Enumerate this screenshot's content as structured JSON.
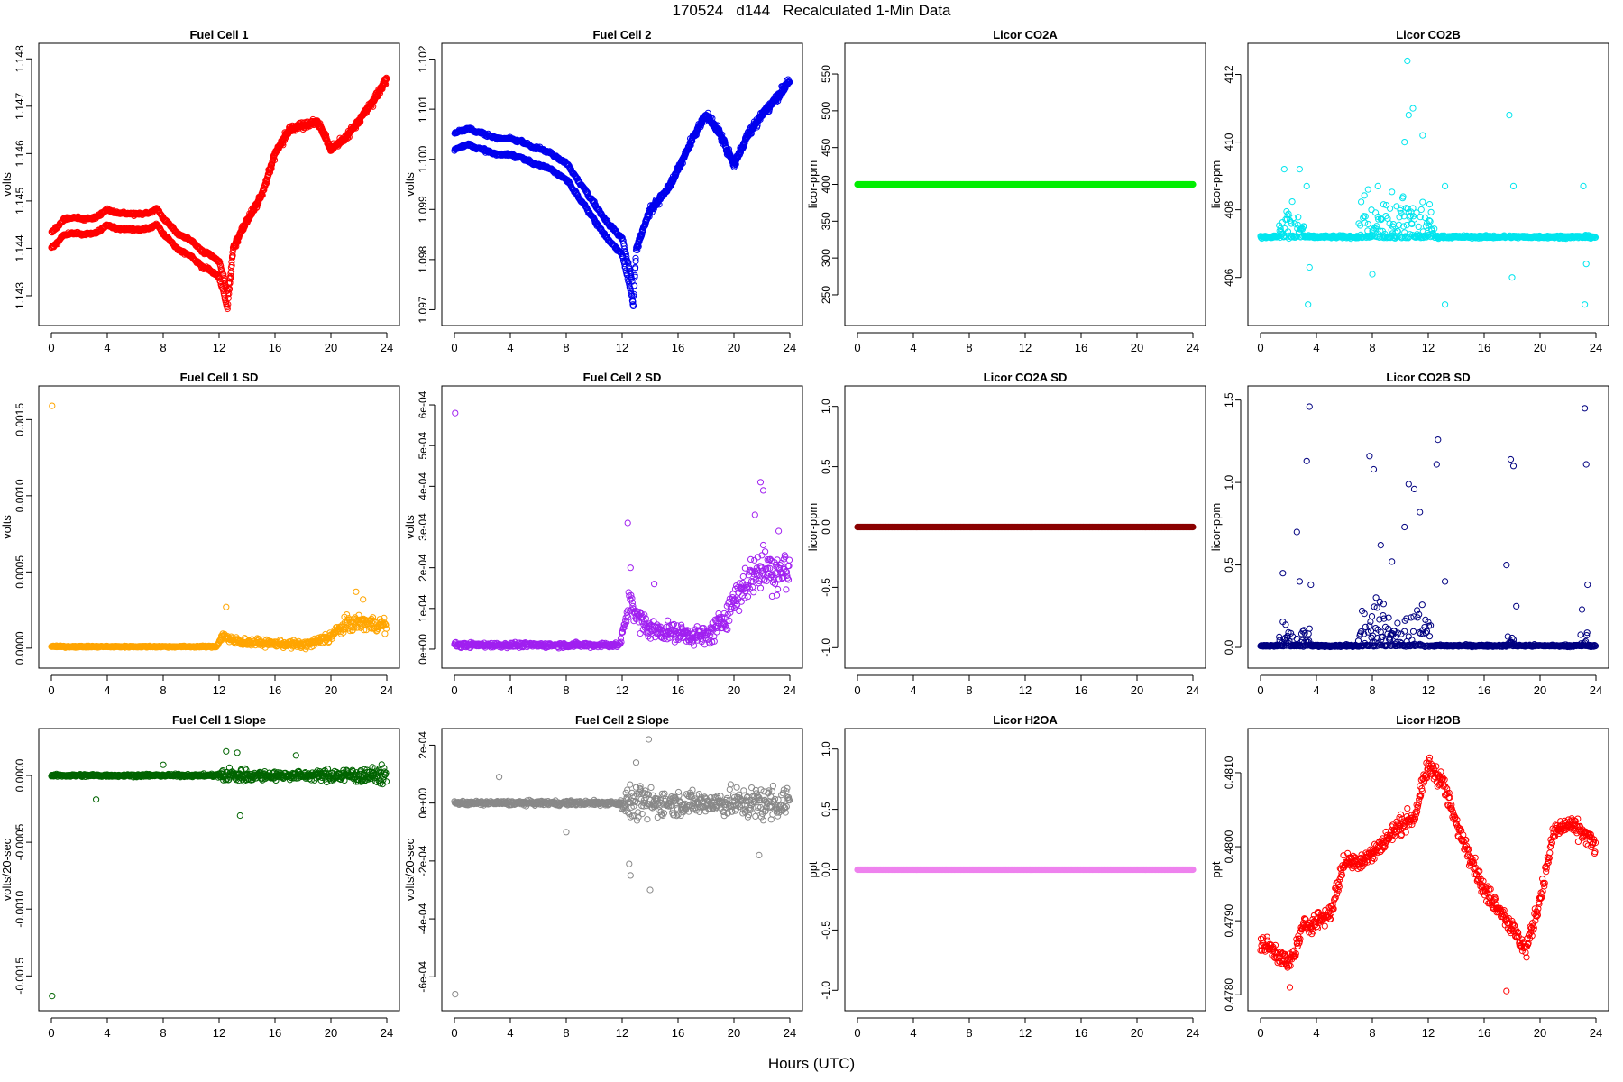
{
  "figure": {
    "title": "170524   d144   Recalculated 1-Min Data",
    "xlabel": "Hours (UTC)"
  },
  "chart_data": [
    {
      "id": "fc1",
      "type": "scatter",
      "title": "Fuel Cell 1",
      "ylabel": "volts",
      "xlim": [
        0,
        24
      ],
      "ylim": [
        1.1426,
        1.1481
      ],
      "xticks": [
        "0",
        "4",
        "8",
        "12",
        "16",
        "20",
        "24"
      ],
      "yticks": [
        1.143,
        1.144,
        1.145,
        1.146,
        1.147,
        1.148
      ],
      "ytick_labels": [
        "1.143",
        "1.144",
        "1.145",
        "1.146",
        "1.147",
        "1.148"
      ],
      "color": "#ff0000",
      "pattern": "dual",
      "series": [
        [
          0,
          1.144
        ],
        [
          1,
          1.1443
        ],
        [
          2,
          1.1443
        ],
        [
          3,
          1.1443
        ],
        [
          4,
          1.1445
        ],
        [
          5,
          1.1444
        ],
        [
          6,
          1.1444
        ],
        [
          7,
          1.1444
        ],
        [
          7.5,
          1.1445
        ],
        [
          8,
          1.1443
        ],
        [
          9,
          1.144
        ],
        [
          10,
          1.1438
        ],
        [
          11,
          1.1436
        ],
        [
          12,
          1.1434
        ],
        [
          12.3,
          1.1431
        ],
        [
          12.6,
          1.1427
        ],
        [
          13,
          1.144
        ],
        [
          14,
          1.1446
        ],
        [
          15,
          1.1451
        ],
        [
          16,
          1.146
        ],
        [
          17,
          1.1465
        ],
        [
          18,
          1.1466
        ],
        [
          19,
          1.1467
        ],
        [
          20,
          1.1461
        ],
        [
          21,
          1.1463
        ],
        [
          22,
          1.1467
        ],
        [
          23,
          1.1471
        ],
        [
          24,
          1.1476
        ]
      ],
      "offset": 0.00033,
      "jitter": 8e-05
    },
    {
      "id": "fc2",
      "type": "scatter",
      "title": "Fuel Cell 2",
      "ylabel": "volts",
      "xlim": [
        0,
        24
      ],
      "ylim": [
        1.0969,
        1.1021
      ],
      "xticks": [
        "0",
        "4",
        "8",
        "12",
        "16",
        "20",
        "24"
      ],
      "yticks": [
        1.097,
        1.098,
        1.099,
        1.1,
        1.101,
        1.102
      ],
      "ytick_labels": [
        "1.097",
        "1.098",
        "1.099",
        "1.100",
        "1.101",
        "1.102"
      ],
      "color": "#0000ee",
      "pattern": "dual",
      "series": [
        [
          0,
          1.1002
        ],
        [
          1,
          1.1003
        ],
        [
          2,
          1.1002
        ],
        [
          3,
          1.1001
        ],
        [
          4,
          1.1001
        ],
        [
          5,
          1.1
        ],
        [
          6,
          1.0999
        ],
        [
          7,
          1.0998
        ],
        [
          8,
          1.0996
        ],
        [
          9,
          1.0992
        ],
        [
          10,
          1.0988
        ],
        [
          11,
          1.0984
        ],
        [
          12,
          1.0981
        ],
        [
          12.5,
          1.0975
        ],
        [
          12.8,
          1.0971
        ],
        [
          13,
          1.0982
        ],
        [
          14,
          1.099
        ],
        [
          15,
          1.0993
        ],
        [
          16,
          1.0998
        ],
        [
          17,
          1.1004
        ],
        [
          18,
          1.1009
        ],
        [
          19,
          1.1005
        ],
        [
          20,
          1.0999
        ],
        [
          21,
          1.1005
        ],
        [
          22,
          1.1009
        ],
        [
          23,
          1.1012
        ],
        [
          24,
          1.1016
        ]
      ],
      "offset": 0.00032,
      "jitter": 8e-05
    },
    {
      "id": "co2a",
      "type": "scatter",
      "title": "Licor CO2A",
      "ylabel": "licor-ppm",
      "xlim": [
        0,
        24
      ],
      "ylim": [
        223,
        577
      ],
      "xticks": [
        "0",
        "4",
        "8",
        "12",
        "16",
        "20",
        "24"
      ],
      "yticks": [
        250,
        300,
        350,
        400,
        450,
        500,
        550
      ],
      "ytick_labels": [
        "250",
        "300",
        "350",
        "400",
        "450",
        "500",
        "550"
      ],
      "color": "#00ee00",
      "pattern": "flat",
      "value": 400,
      "filled": true
    },
    {
      "id": "co2b",
      "type": "scatter",
      "title": "Licor CO2B",
      "ylabel": "licor-ppm",
      "xlim": [
        0,
        24
      ],
      "ylim": [
        404.9,
        412.6
      ],
      "xticks": [
        "0",
        "4",
        "8",
        "12",
        "16",
        "20",
        "24"
      ],
      "yticks": [
        406,
        408,
        410,
        412
      ],
      "ytick_labels": [
        "406",
        "408",
        "410",
        "412"
      ],
      "color": "#00e5ee",
      "pattern": "baseline",
      "base": 407.2,
      "jitter": 0.04,
      "bursts": [
        [
          1.3,
          3.2,
          1.2
        ],
        [
          7,
          12.2,
          1.6
        ],
        [
          12.2,
          12.5,
          0.6
        ]
      ],
      "outliers": [
        [
          1.7,
          409.2
        ],
        [
          2.8,
          409.2
        ],
        [
          3.3,
          408.7
        ],
        [
          3.5,
          406.3
        ],
        [
          3.4,
          405.2
        ],
        [
          7.7,
          408.6
        ],
        [
          8.4,
          408.7
        ],
        [
          8.0,
          406.1
        ],
        [
          10.3,
          410.0
        ],
        [
          10.6,
          410.8
        ],
        [
          10.5,
          412.4
        ],
        [
          10.9,
          411.0
        ],
        [
          11.6,
          410.2
        ],
        [
          13.2,
          408.7
        ],
        [
          13.2,
          405.2
        ],
        [
          17.8,
          410.8
        ],
        [
          18.1,
          408.7
        ],
        [
          18.0,
          406.0
        ],
        [
          23.1,
          408.7
        ],
        [
          23.3,
          406.4
        ],
        [
          23.2,
          405.2
        ]
      ]
    },
    {
      "id": "fc1sd",
      "type": "scatter",
      "title": "Fuel Cell 1 SD",
      "ylabel": "volts",
      "xlim": [
        0,
        24
      ],
      "ylim": [
        -6e-05,
        0.00165
      ],
      "xticks": [
        "0",
        "4",
        "8",
        "12",
        "16",
        "20",
        "24"
      ],
      "yticks": [
        0,
        0.0005,
        0.001,
        0.0015
      ],
      "ytick_labels": [
        "0.0000",
        "0.0005",
        "0.0010",
        "0.0015"
      ],
      "color": "#ffa500",
      "pattern": "noise",
      "series": [
        [
          0,
          1e-05
        ],
        [
          11.8,
          1e-05
        ],
        [
          12.3,
          9e-05
        ],
        [
          12.8,
          5e-05
        ],
        [
          14,
          4e-05
        ],
        [
          16,
          3e-05
        ],
        [
          18,
          2e-05
        ],
        [
          19,
          4e-05
        ],
        [
          20,
          8e-05
        ],
        [
          21,
          0.00015
        ],
        [
          22,
          0.00017
        ],
        [
          24,
          0.00015
        ]
      ],
      "spread": [
        [
          0,
          5e-06
        ],
        [
          11.8,
          5e-06
        ],
        [
          12.5,
          3e-05
        ],
        [
          16,
          2e-05
        ],
        [
          19,
          3e-05
        ],
        [
          21,
          5e-05
        ],
        [
          24,
          5e-05
        ]
      ],
      "outliers": [
        [
          0.05,
          0.00159
        ],
        [
          12.5,
          0.00027
        ],
        [
          21.8,
          0.00037
        ],
        [
          22.3,
          0.00032
        ]
      ]
    },
    {
      "id": "fc2sd",
      "type": "scatter",
      "title": "Fuel Cell 2 SD",
      "ylabel": "volts",
      "xlim": [
        0,
        24
      ],
      "ylim": [
        -2e-05,
        0.00062
      ],
      "xticks": [
        "0",
        "4",
        "8",
        "12",
        "16",
        "20",
        "24"
      ],
      "yticks": [
        0,
        0.0001,
        0.0002,
        0.0003,
        0.0004,
        0.0005,
        0.0006
      ],
      "ytick_labels": [
        "0e+00",
        "1e-04",
        "2e-04",
        "3e-04",
        "4e-04",
        "5e-04",
        "6e-04"
      ],
      "color": "#a020f0",
      "pattern": "noise",
      "series": [
        [
          0,
          1e-05
        ],
        [
          11.8,
          1e-05
        ],
        [
          12.2,
          6e-05
        ],
        [
          12.6,
          0.00013
        ],
        [
          13,
          8e-05
        ],
        [
          14,
          5e-05
        ],
        [
          16,
          4e-05
        ],
        [
          18,
          3e-05
        ],
        [
          19,
          6e-05
        ],
        [
          20,
          0.00012
        ],
        [
          21,
          0.00017
        ],
        [
          22,
          0.0002
        ],
        [
          24,
          0.00019
        ]
      ],
      "spread": [
        [
          0,
          6e-06
        ],
        [
          11.8,
          6e-06
        ],
        [
          12.5,
          3e-05
        ],
        [
          16,
          2e-05
        ],
        [
          19,
          3e-05
        ],
        [
          21,
          5e-05
        ],
        [
          24,
          6e-05
        ]
      ],
      "outliers": [
        [
          0.05,
          0.00058
        ],
        [
          12.4,
          0.00031
        ],
        [
          12.6,
          0.0002
        ],
        [
          14.3,
          0.00016
        ],
        [
          21.9,
          0.00041
        ],
        [
          22.1,
          0.00039
        ],
        [
          21.5,
          0.00033
        ],
        [
          23.2,
          0.00029
        ]
      ]
    },
    {
      "id": "co2asd",
      "type": "scatter",
      "title": "Licor CO2A SD",
      "ylabel": "licor-ppm",
      "xlim": [
        0,
        24
      ],
      "ylim": [
        -1.08,
        1.08
      ],
      "xticks": [
        "0",
        "4",
        "8",
        "12",
        "16",
        "20",
        "24"
      ],
      "yticks": [
        -1,
        -0.5,
        0,
        0.5,
        1
      ],
      "ytick_labels": [
        "-1.0",
        "-0.5",
        "0.0",
        "0.5",
        "1.0"
      ],
      "color": "#8b0000",
      "pattern": "flat",
      "value": 0,
      "filled": true
    },
    {
      "id": "co2bsd",
      "type": "scatter",
      "title": "Licor CO2B SD",
      "ylabel": "licor-ppm",
      "xlim": [
        0,
        24
      ],
      "ylim": [
        -0.06,
        1.52
      ],
      "xticks": [
        "0",
        "4",
        "8",
        "12",
        "16",
        "20",
        "24"
      ],
      "yticks": [
        0,
        0.5,
        1,
        1.5
      ],
      "ytick_labels": [
        "0.0",
        "0.5",
        "1.0",
        "1.5"
      ],
      "color": "#000080",
      "pattern": "baseline",
      "base": 0.01,
      "jitter": 0.006,
      "bursts": [
        [
          1.3,
          3.5,
          0.15
        ],
        [
          7,
          12.2,
          0.35
        ],
        [
          17.7,
          18.3,
          0.1
        ],
        [
          22.9,
          23.4,
          0.1
        ]
      ],
      "outliers": [
        [
          1.6,
          0.45
        ],
        [
          2.6,
          0.7
        ],
        [
          2.8,
          0.4
        ],
        [
          3.3,
          1.13
        ],
        [
          3.5,
          1.46
        ],
        [
          3.6,
          0.38
        ],
        [
          7.8,
          1.16
        ],
        [
          8.1,
          1.08
        ],
        [
          8.6,
          0.62
        ],
        [
          9.4,
          0.52
        ],
        [
          10.3,
          0.73
        ],
        [
          10.6,
          0.99
        ],
        [
          11.0,
          0.96
        ],
        [
          11.4,
          0.82
        ],
        [
          12.6,
          1.11
        ],
        [
          12.7,
          1.26
        ],
        [
          13.2,
          0.4
        ],
        [
          17.6,
          0.5
        ],
        [
          17.9,
          1.14
        ],
        [
          18.1,
          1.1
        ],
        [
          18.3,
          0.25
        ],
        [
          23.0,
          0.23
        ],
        [
          23.2,
          1.45
        ],
        [
          23.3,
          1.11
        ],
        [
          23.4,
          0.38
        ]
      ]
    },
    {
      "id": "fc1sl",
      "type": "scatter",
      "title": "Fuel Cell 1 Slope",
      "ylabel": "volts/20-sec",
      "xlim": [
        0,
        24
      ],
      "ylim": [
        -0.00168,
        0.00027
      ],
      "xticks": [
        "0",
        "4",
        "8",
        "12",
        "16",
        "20",
        "24"
      ],
      "yticks": [
        -0.0015,
        -0.001,
        -0.0005,
        0
      ],
      "ytick_labels": [
        "-0.0015",
        "-0.0010",
        "-0.0005",
        "0.0000"
      ],
      "color": "#006400",
      "pattern": "noise",
      "series": [
        [
          0,
          0
        ],
        [
          24,
          0
        ]
      ],
      "spread": [
        [
          0,
          1e-05
        ],
        [
          11.8,
          1e-05
        ],
        [
          12.5,
          6e-05
        ],
        [
          16,
          3e-05
        ],
        [
          19,
          3e-05
        ],
        [
          20,
          5e-05
        ],
        [
          24,
          6e-05
        ]
      ],
      "outliers": [
        [
          0.05,
          -0.00165
        ],
        [
          3.2,
          -0.00018
        ],
        [
          8.0,
          8e-05
        ],
        [
          12.5,
          0.00018
        ],
        [
          13.5,
          -0.0003
        ],
        [
          13.3,
          0.00017
        ],
        [
          17.5,
          0.00015
        ]
      ]
    },
    {
      "id": "fc2sl",
      "type": "scatter",
      "title": "Fuel Cell 2 Slope",
      "ylabel": "volts/20-sec",
      "xlim": [
        0,
        24
      ],
      "ylim": [
        -0.00068,
        0.00022
      ],
      "xticks": [
        "0",
        "4",
        "8",
        "12",
        "16",
        "20",
        "24"
      ],
      "yticks": [
        -0.0006,
        -0.0004,
        -0.0002,
        0,
        0.0002
      ],
      "ytick_labels": [
        "-6e-04",
        "-4e-04",
        "-2e-04",
        "0e+00",
        "2e-04"
      ],
      "color": "#888888",
      "pattern": "noise",
      "series": [
        [
          0,
          0
        ],
        [
          24,
          0
        ]
      ],
      "spread": [
        [
          0,
          7e-06
        ],
        [
          11.8,
          8e-06
        ],
        [
          12.5,
          6e-05
        ],
        [
          16,
          4e-05
        ],
        [
          19,
          4e-05
        ],
        [
          20,
          5e-05
        ],
        [
          24,
          6e-05
        ]
      ],
      "outliers": [
        [
          0.05,
          -0.00066
        ],
        [
          3.2,
          9e-05
        ],
        [
          8.0,
          -0.0001
        ],
        [
          12.5,
          -0.00021
        ],
        [
          12.6,
          -0.00025
        ],
        [
          14.0,
          -0.0003
        ],
        [
          13.9,
          0.00022
        ],
        [
          13.0,
          0.00014
        ],
        [
          21.8,
          -0.00018
        ]
      ]
    },
    {
      "id": "h2oa",
      "type": "scatter",
      "title": "Licor H2OA",
      "ylabel": "ppt",
      "xlim": [
        0,
        24
      ],
      "ylim": [
        -1.08,
        1.08
      ],
      "xticks": [
        "0",
        "4",
        "8",
        "12",
        "16",
        "20",
        "24"
      ],
      "yticks": [
        -1,
        -0.5,
        0,
        0.5,
        1
      ],
      "ytick_labels": [
        "-1.0",
        "-0.5",
        "0.0",
        "0.5",
        "1.0"
      ],
      "color": "#ee82ee",
      "pattern": "flat",
      "value": 0,
      "filled": true
    },
    {
      "id": "h2ob",
      "type": "scatter",
      "title": "Licor H2OB",
      "ylabel": "ppt",
      "xlim": [
        0,
        24
      ],
      "ylim": [
        0.47793,
        0.48145
      ],
      "xticks": [
        "0",
        "4",
        "8",
        "12",
        "16",
        "20",
        "24"
      ],
      "yticks": [
        0.478,
        0.479,
        0.48,
        0.481
      ],
      "ytick_labels": [
        "0.4780",
        "0.4790",
        "0.4800",
        "0.4810"
      ],
      "color": "#ff0000",
      "pattern": "noise",
      "series": [
        [
          0,
          0.4787
        ],
        [
          1,
          0.4786
        ],
        [
          2,
          0.4784
        ],
        [
          2.5,
          0.4786
        ],
        [
          3,
          0.4789
        ],
        [
          4,
          0.479
        ],
        [
          5,
          0.4791
        ],
        [
          6,
          0.4798
        ],
        [
          7,
          0.4798
        ],
        [
          8,
          0.4799
        ],
        [
          9,
          0.4801
        ],
        [
          10,
          0.4803
        ],
        [
          11,
          0.4804
        ],
        [
          12,
          0.4811
        ],
        [
          13,
          0.4809
        ],
        [
          14,
          0.4803
        ],
        [
          15,
          0.4799
        ],
        [
          16,
          0.4794
        ],
        [
          17,
          0.4792
        ],
        [
          18,
          0.4789
        ],
        [
          19,
          0.4786
        ],
        [
          20,
          0.4793
        ],
        [
          21,
          0.4802
        ],
        [
          22,
          0.4803
        ],
        [
          23,
          0.4802
        ],
        [
          24,
          0.48
        ]
      ],
      "spread": [
        [
          0,
          0.00012
        ],
        [
          24,
          0.00012
        ]
      ],
      "outliers": [
        [
          2.1,
          0.4781
        ],
        [
          17.6,
          0.47805
        ]
      ]
    }
  ]
}
